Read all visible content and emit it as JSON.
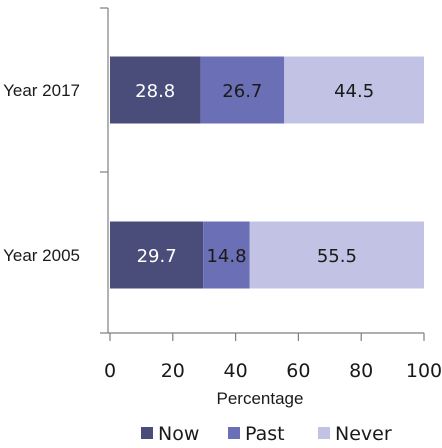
{
  "chart_data": {
    "type": "bar",
    "orientation": "horizontal",
    "stacked": true,
    "categories": [
      "Year 2017",
      "Year 2005"
    ],
    "series": [
      {
        "name": "Now",
        "values": [
          28.8,
          29.7
        ],
        "color": "#4a4d7a",
        "label_color": "#ffffff"
      },
      {
        "name": "Past",
        "values": [
          26.7,
          14.8
        ],
        "color": "#6b6fb5",
        "label_color": "#1a1a1a"
      },
      {
        "name": "Never",
        "values": [
          44.5,
          55.5
        ],
        "color": "#c2c3e4",
        "label_color": "#1a1a1a"
      }
    ],
    "data_labels": [
      [
        "28.8",
        "29.7"
      ],
      [
        "26.7",
        "14.8"
      ],
      [
        "44.5",
        "55.5"
      ]
    ],
    "xticks": [
      "0",
      "20",
      "40",
      "60",
      "80",
      "100"
    ],
    "xlim": [
      0,
      100
    ],
    "title": "",
    "xlabel": "Percentage",
    "ylabel": "",
    "grid": false,
    "legend_position": "bottom"
  }
}
